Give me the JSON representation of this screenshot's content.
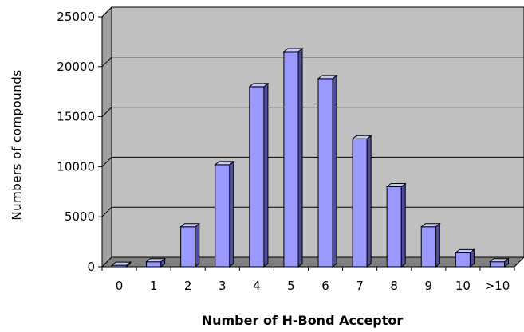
{
  "chart_data": {
    "type": "bar",
    "title": "",
    "xlabel": "Number of H-Bond Acceptor",
    "ylabel": "Numbers of compounds",
    "categories": [
      "0",
      "1",
      "2",
      "3",
      "4",
      "5",
      "6",
      "7",
      "8",
      "9",
      "10",
      ">10"
    ],
    "values": [
      150,
      500,
      4000,
      10200,
      18000,
      21500,
      18800,
      12800,
      8000,
      4000,
      1400,
      500
    ],
    "ylim": [
      0,
      25000
    ],
    "yticks": [
      "0",
      "5000",
      "10000",
      "15000",
      "20000",
      "25000"
    ],
    "grid": true,
    "legend": "none",
    "colors": {
      "bar_front": "#9999ff",
      "bar_side": "#4d4d99",
      "bar_top": "#c8c8ff",
      "plot_back": "#c0c0c0",
      "plot_floor": "#808080"
    }
  }
}
